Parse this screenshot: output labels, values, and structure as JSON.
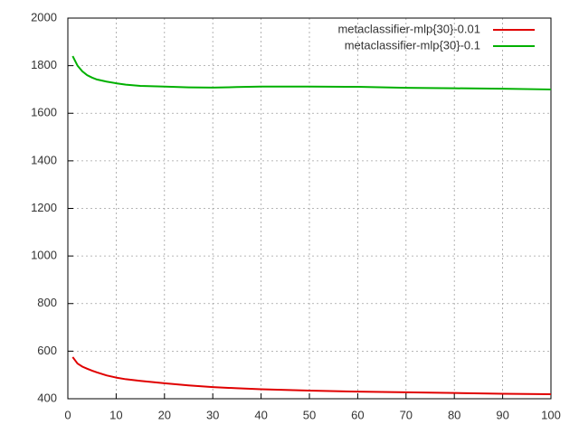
{
  "chart_data": {
    "type": "line",
    "x": [
      1,
      2,
      3,
      4,
      5,
      6,
      8,
      10,
      12,
      15,
      20,
      25,
      30,
      35,
      40,
      50,
      60,
      70,
      80,
      90,
      100
    ],
    "series": [
      {
        "name": "metaclassifier-mlp{30}-0.01",
        "color": "#e00000",
        "values": [
          575,
          548,
          535,
          526,
          518,
          511,
          498,
          489,
          482,
          475,
          465,
          456,
          449,
          444,
          440,
          434,
          430,
          427,
          424,
          421,
          419
        ]
      },
      {
        "name": "metaclassifier-mlp{30}-0.1",
        "color": "#00b000",
        "values": [
          1840,
          1800,
          1776,
          1760,
          1750,
          1742,
          1733,
          1726,
          1720,
          1715,
          1712,
          1709,
          1708,
          1710,
          1712,
          1712,
          1711,
          1707,
          1705,
          1703,
          1700
        ]
      }
    ],
    "xlim": [
      0,
      100
    ],
    "xticks": [
      0,
      10,
      20,
      30,
      40,
      50,
      60,
      70,
      80,
      90,
      100
    ],
    "ylim": [
      400,
      2000
    ],
    "yticks": [
      400,
      600,
      800,
      1000,
      1200,
      1400,
      1600,
      1800,
      2000
    ],
    "grid": true,
    "legend": "top-right"
  }
}
